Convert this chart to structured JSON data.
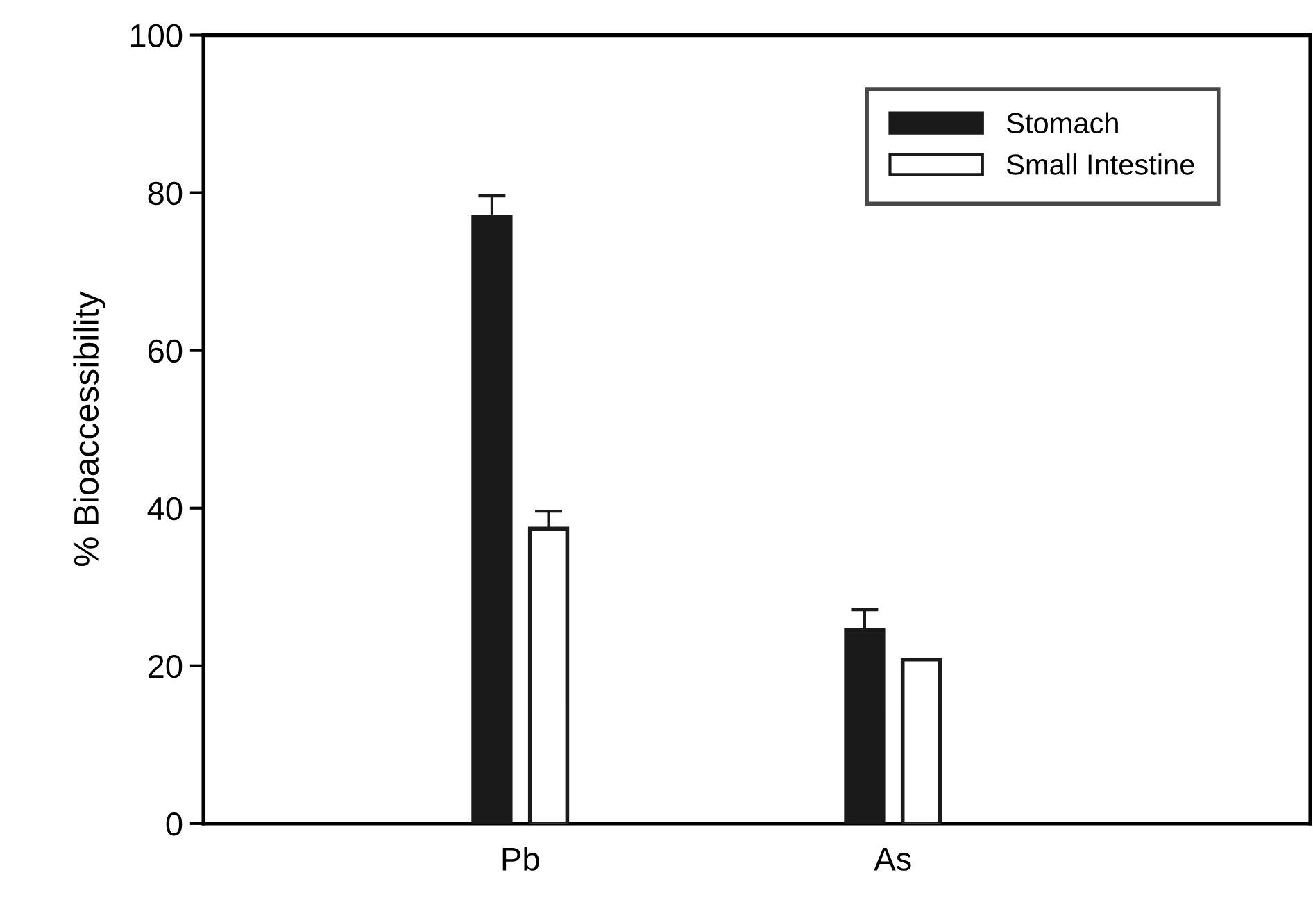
{
  "chart_data": {
    "type": "bar",
    "ylabel": "% Bioaccessibility",
    "categories": [
      "Pb",
      "As"
    ],
    "series": [
      {
        "name": "Stomach",
        "color": "#1a1a1a",
        "values": [
          76.9,
          24.5
        ],
        "errors": [
          [
            76.9,
            79.6
          ],
          [
            24.5,
            27.1
          ]
        ]
      },
      {
        "name": "Small Intestine",
        "color": "#ffffff",
        "values": [
          37.4,
          20.8
        ],
        "errors": [
          [
            37.4,
            39.6
          ],
          null
        ]
      }
    ],
    "ylim": [
      0,
      100
    ],
    "yticks": [
      0,
      20,
      40,
      60,
      80,
      100
    ],
    "grid": false,
    "legend": "top right"
  }
}
